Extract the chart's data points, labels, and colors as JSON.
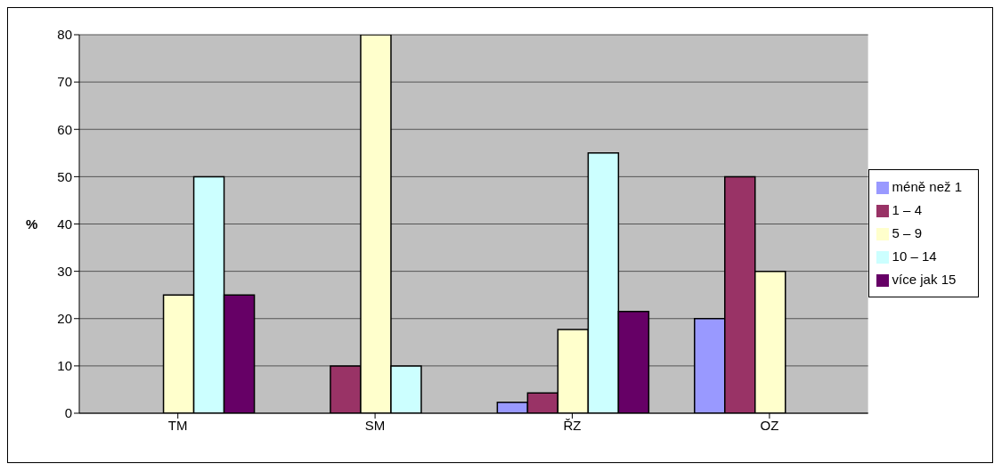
{
  "chart_data": {
    "type": "bar",
    "ylabel": "%",
    "categories": [
      "TM",
      "SM",
      "ŘZ",
      "OZ"
    ],
    "series": [
      {
        "name": "méně než 1",
        "color": "#9999ff",
        "values": [
          0,
          0,
          2.3,
          20
        ]
      },
      {
        "name": "1 – 4",
        "color": "#993366",
        "values": [
          0,
          10,
          4.3,
          50
        ]
      },
      {
        "name": "5 – 9",
        "color": "#ffffcc",
        "values": [
          25,
          80,
          17.7,
          30
        ]
      },
      {
        "name": "10 – 14",
        "color": "#ccffff",
        "values": [
          50,
          10,
          55,
          0
        ]
      },
      {
        "name": "více jak 15",
        "color": "#660066",
        "values": [
          25,
          0,
          21.5,
          0
        ]
      }
    ],
    "ylim": [
      0,
      80
    ],
    "yticks": [
      0,
      10,
      20,
      30,
      40,
      50,
      60,
      70,
      80
    ],
    "grid": "y",
    "legend": "right"
  }
}
